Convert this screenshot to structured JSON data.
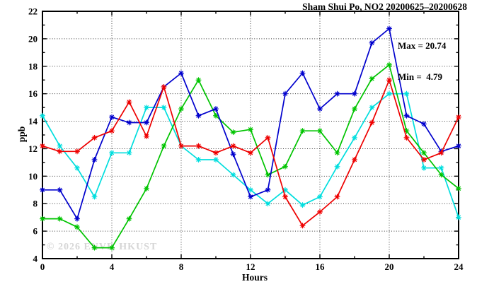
{
  "window": {
    "background": "#ffffff",
    "accent_black": "#000000",
    "watermark_color": "#d6d6d6"
  },
  "chart_data": {
    "type": "line",
    "title": "Sham Shui Po, NO2 20200625–20200628",
    "xlabel": "Hours",
    "ylabel": "ppb",
    "xlim": [
      0,
      24
    ],
    "ylim": [
      4,
      22
    ],
    "grid": true,
    "grid_style": "dotted",
    "legend_position": "none",
    "xticks_major": [
      0,
      4,
      8,
      12,
      16,
      20,
      24
    ],
    "xticks_minor": [
      2,
      6,
      10,
      14,
      18,
      22
    ],
    "yticks_major": [
      4,
      6,
      8,
      10,
      12,
      14,
      16,
      18,
      20,
      22
    ],
    "yticks_minor": [
      5,
      7,
      9,
      11,
      13,
      15,
      17,
      19,
      21
    ],
    "x": [
      0,
      1,
      2,
      3,
      4,
      5,
      6,
      7,
      8,
      9,
      10,
      11,
      12,
      13,
      14,
      15,
      16,
      17,
      18,
      19,
      20,
      21,
      22,
      23,
      24
    ],
    "series": [
      {
        "name": "cyan",
        "color": "#00dede",
        "marker": "asterisk",
        "values": [
          14.4,
          12.2,
          10.6,
          8.5,
          11.7,
          11.7,
          15.0,
          15.0,
          12.2,
          11.2,
          11.2,
          10.1,
          9.0,
          8.0,
          9.0,
          7.9,
          8.5,
          10.7,
          12.8,
          15.0,
          16.0,
          16.0,
          10.6,
          10.6,
          7.0
        ]
      },
      {
        "name": "green",
        "color": "#00c400",
        "marker": "asterisk",
        "values": [
          6.9,
          6.9,
          6.3,
          4.79,
          4.79,
          6.9,
          9.1,
          12.2,
          14.9,
          17.0,
          14.4,
          13.2,
          13.4,
          10.1,
          10.7,
          13.3,
          13.3,
          11.7,
          14.9,
          17.1,
          18.1,
          13.3,
          11.7,
          10.1,
          9.1
        ]
      },
      {
        "name": "blue",
        "color": "#0000cd",
        "marker": "asterisk",
        "values": [
          9.0,
          9.0,
          6.9,
          11.2,
          14.3,
          13.9,
          13.9,
          16.5,
          17.5,
          14.4,
          14.9,
          11.6,
          8.5,
          9.0,
          16.0,
          17.5,
          14.9,
          16.0,
          16.0,
          19.7,
          20.74,
          14.4,
          13.8,
          11.8,
          12.2
        ]
      },
      {
        "name": "red",
        "color": "#ee0000",
        "marker": "asterisk",
        "values": [
          12.2,
          11.8,
          11.8,
          12.8,
          13.3,
          15.4,
          12.9,
          16.5,
          12.2,
          12.2,
          11.7,
          12.2,
          11.7,
          12.8,
          8.5,
          6.4,
          7.4,
          8.5,
          11.2,
          13.9,
          17.0,
          12.8,
          11.2,
          11.7,
          14.3
        ]
      }
    ],
    "annotations": {
      "max_label": "Max = 20.74",
      "min_label": "Min =  4.79"
    },
    "watermark": "© 2026 ENVF, HKUST"
  }
}
